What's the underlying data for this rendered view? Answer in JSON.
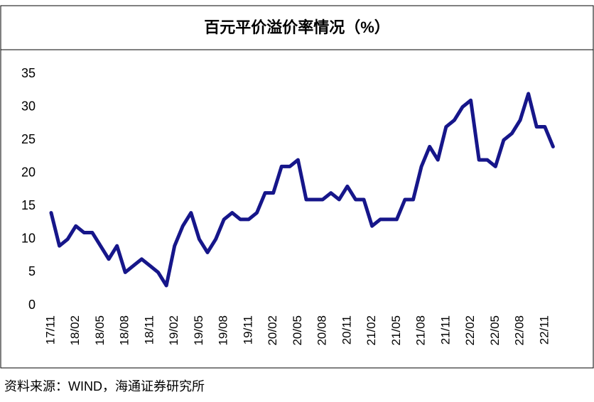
{
  "title": "百元平价溢价率情况（%）",
  "source": "资料来源：WIND，海通证券研究所",
  "chart_data": {
    "type": "line",
    "categories": [
      "17/11",
      null,
      null,
      "18/02",
      null,
      null,
      "18/05",
      null,
      null,
      "18/08",
      null,
      null,
      "18/11",
      null,
      null,
      "19/02",
      null,
      null,
      "19/05",
      null,
      null,
      "19/08",
      null,
      null,
      "19/11",
      null,
      null,
      "20/02",
      null,
      null,
      "20/05",
      null,
      null,
      "20/08",
      null,
      null,
      "20/11",
      null,
      null,
      "21/02",
      null,
      null,
      "21/05",
      null,
      null,
      "21/08",
      null,
      null,
      "21/11",
      null,
      null,
      "22/02",
      null,
      null,
      "22/05",
      null,
      null,
      "22/08",
      null,
      null,
      "22/11",
      null
    ],
    "values": [
      14,
      9,
      10,
      12,
      11,
      11,
      9,
      7,
      9,
      5,
      6,
      7,
      6,
      5,
      3,
      9,
      12,
      14,
      10,
      8,
      10,
      13,
      14,
      13,
      13,
      14,
      17,
      17,
      21,
      21,
      22,
      16,
      16,
      16,
      17,
      16,
      18,
      16,
      16,
      12,
      13,
      13,
      13,
      16,
      16,
      21,
      24,
      22,
      27,
      28,
      30,
      31,
      22,
      22,
      21,
      25,
      26,
      28,
      32,
      27,
      27,
      24
    ],
    "color": "#16168a",
    "ylim": [
      0,
      35
    ],
    "yticks": [
      0,
      5,
      10,
      15,
      20,
      25,
      30,
      35
    ]
  }
}
